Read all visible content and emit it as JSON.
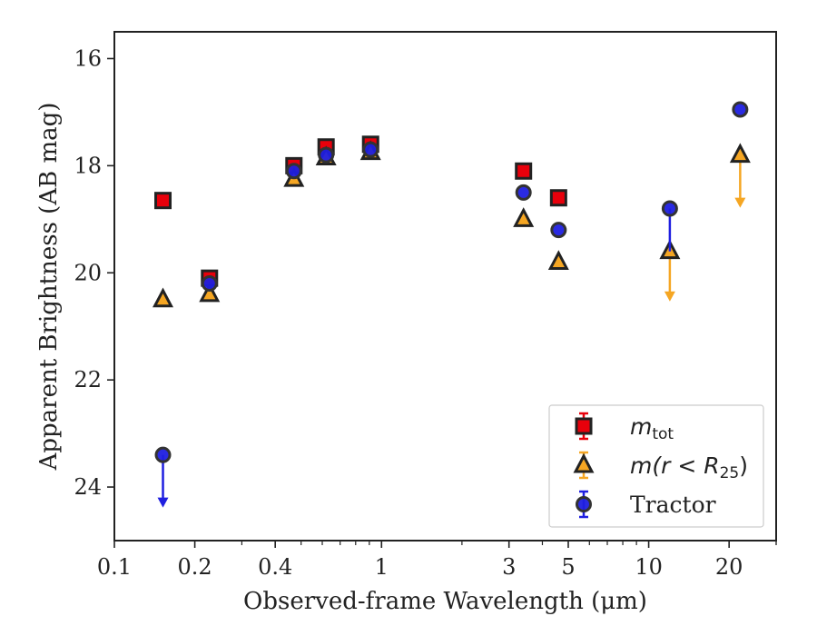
{
  "chart_data": {
    "type": "scatter",
    "title": "",
    "xlabel": "Observed-frame Wavelength (μm)",
    "ylabel": "Apparent Brightness (AB mag)",
    "xscale": "log",
    "xlim": [
      0.1,
      30
    ],
    "ylim": [
      25,
      15.5
    ],
    "y_inverted": true,
    "x_ticks": [
      {
        "value": 0.1,
        "label": "0.1"
      },
      {
        "value": 0.2,
        "label": "0.2"
      },
      {
        "value": 0.4,
        "label": "0.4"
      },
      {
        "value": 1,
        "label": "1"
      },
      {
        "value": 3,
        "label": "3"
      },
      {
        "value": 5,
        "label": "5"
      },
      {
        "value": 10,
        "label": "10"
      },
      {
        "value": 20,
        "label": "20"
      }
    ],
    "y_ticks": [
      {
        "value": 16,
        "label": "16"
      },
      {
        "value": 18,
        "label": "18"
      },
      {
        "value": 20,
        "label": "20"
      },
      {
        "value": 22,
        "label": "22"
      },
      {
        "value": 24,
        "label": "24"
      }
    ],
    "legend_position": "lower-right",
    "series": [
      {
        "name": "m_tot",
        "legend_main": "m",
        "legend_sub": "tot",
        "marker": "square",
        "color": "#e8000b",
        "points": [
          {
            "x": 0.152,
            "y": 18.65
          },
          {
            "x": 0.227,
            "y": 20.1
          },
          {
            "x": 0.47,
            "y": 18.0
          },
          {
            "x": 0.62,
            "y": 17.65
          },
          {
            "x": 0.91,
            "y": 17.6
          },
          {
            "x": 3.4,
            "y": 18.1
          },
          {
            "x": 4.6,
            "y": 18.6
          }
        ]
      },
      {
        "name": "m(r < R25)",
        "legend_main": "m(r < R",
        "legend_sub": "25",
        "legend_end": ")",
        "marker": "triangle",
        "color": "#f5a623",
        "points": [
          {
            "x": 0.152,
            "y": 20.5
          },
          {
            "x": 0.227,
            "y": 20.4
          },
          {
            "x": 0.47,
            "y": 18.25
          },
          {
            "x": 0.62,
            "y": 17.85
          },
          {
            "x": 0.91,
            "y": 17.75
          },
          {
            "x": 3.4,
            "y": 19.0
          },
          {
            "x": 4.6,
            "y": 19.8
          },
          {
            "x": 12.0,
            "y": 19.6,
            "upper_limit_to": 20.5
          },
          {
            "x": 22.0,
            "y": 17.8,
            "upper_limit_to": 18.75
          }
        ]
      },
      {
        "name": "Tractor",
        "marker": "circle",
        "color": "#1f1fe0",
        "points": [
          {
            "x": 0.152,
            "y": 23.4,
            "upper_limit_to": 24.35
          },
          {
            "x": 0.227,
            "y": 20.2
          },
          {
            "x": 0.47,
            "y": 18.1
          },
          {
            "x": 0.62,
            "y": 17.8
          },
          {
            "x": 0.91,
            "y": 17.7
          },
          {
            "x": 3.4,
            "y": 18.5
          },
          {
            "x": 4.6,
            "y": 19.2
          },
          {
            "x": 12.0,
            "y": 18.8,
            "line_to": 19.6
          },
          {
            "x": 22.0,
            "y": 16.95
          }
        ]
      }
    ]
  }
}
